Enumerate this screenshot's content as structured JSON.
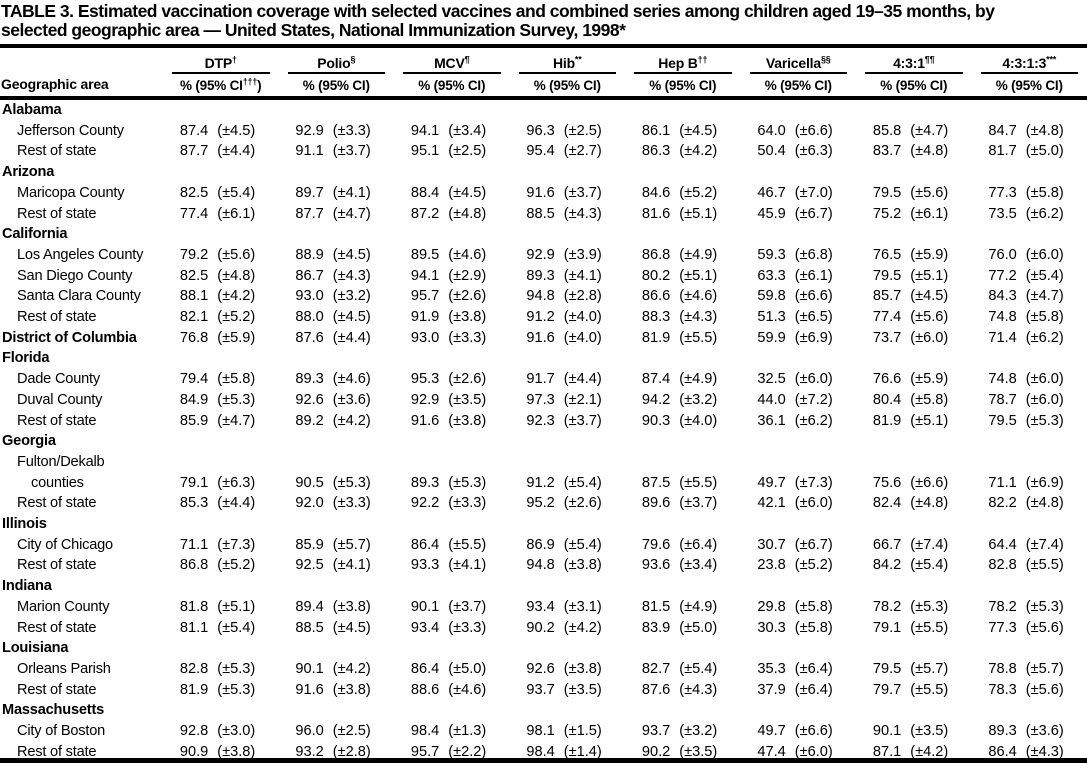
{
  "colors": {
    "text": "#000000",
    "background": "#ffffff",
    "rule": "#000000"
  },
  "title_line1": "TABLE 3. Estimated vaccination coverage with selected vaccines and combined series among children aged 19–35 months, by",
  "title_line2": "selected geographic area — United States, National Immunization Survey, 1998*",
  "table": {
    "geo_header": "Geographic area",
    "columns": [
      {
        "label": "DTP",
        "sup": "†",
        "sub": {
          "pre": "% (95% CI",
          "sup": "†††",
          "post": ")"
        }
      },
      {
        "label": "Polio",
        "sup": "§",
        "sub": {
          "pre": "% (95% CI",
          "sup": "",
          "post": ")"
        }
      },
      {
        "label": "MCV",
        "sup": "¶",
        "sub": {
          "pre": "% (95% CI",
          "sup": "",
          "post": ")"
        }
      },
      {
        "label": "Hib",
        "sup": "**",
        "sub": {
          "pre": "% (95% CI",
          "sup": "",
          "post": ")"
        }
      },
      {
        "label": "Hep B",
        "sup": "††",
        "sub": {
          "pre": "% (95% CI",
          "sup": "",
          "post": ")"
        }
      },
      {
        "label": "Varicella",
        "sup": "§§",
        "sub": {
          "pre": "% (95% CI",
          "sup": "",
          "post": ")"
        }
      },
      {
        "label": "4:3:1",
        "sup": "¶¶",
        "sub": {
          "pre": "% (95% CI",
          "sup": "",
          "post": ")"
        }
      },
      {
        "label": "4:3:1:3",
        "sup": "***",
        "sub": {
          "pre": "% (95% CI",
          "sup": "",
          "post": ")"
        }
      }
    ],
    "rows": [
      {
        "label": "Alabama",
        "bold": true,
        "indent": 0,
        "values": null
      },
      {
        "label": "Jefferson County",
        "indent": 1,
        "values": [
          [
            "87.4",
            "(±4.5)"
          ],
          [
            "92.9",
            "(±3.3)"
          ],
          [
            "94.1",
            "(±3.4)"
          ],
          [
            "96.3",
            "(±2.5)"
          ],
          [
            "86.1",
            "(±4.5)"
          ],
          [
            "64.0",
            "(±6.6)"
          ],
          [
            "85.8",
            "(±4.7)"
          ],
          [
            "84.7",
            "(±4.8)"
          ]
        ]
      },
      {
        "label": "Rest of state",
        "indent": 1,
        "values": [
          [
            "87.7",
            "(±4.4)"
          ],
          [
            "91.1",
            "(±3.7)"
          ],
          [
            "95.1",
            "(±2.5)"
          ],
          [
            "95.4",
            "(±2.7)"
          ],
          [
            "86.3",
            "(±4.2)"
          ],
          [
            "50.4",
            "(±6.3)"
          ],
          [
            "83.7",
            "(±4.8)"
          ],
          [
            "81.7",
            "(±5.0)"
          ]
        ]
      },
      {
        "label": "Arizona",
        "bold": true,
        "indent": 0,
        "values": null
      },
      {
        "label": "Maricopa County",
        "indent": 1,
        "values": [
          [
            "82.5",
            "(±5.4)"
          ],
          [
            "89.7",
            "(±4.1)"
          ],
          [
            "88.4",
            "(±4.5)"
          ],
          [
            "91.6",
            "(±3.7)"
          ],
          [
            "84.6",
            "(±5.2)"
          ],
          [
            "46.7",
            "(±7.0)"
          ],
          [
            "79.5",
            "(±5.6)"
          ],
          [
            "77.3",
            "(±5.8)"
          ]
        ]
      },
      {
        "label": "Rest of state",
        "indent": 1,
        "values": [
          [
            "77.4",
            "(±6.1)"
          ],
          [
            "87.7",
            "(±4.7)"
          ],
          [
            "87.2",
            "(±4.8)"
          ],
          [
            "88.5",
            "(±4.3)"
          ],
          [
            "81.6",
            "(±5.1)"
          ],
          [
            "45.9",
            "(±6.7)"
          ],
          [
            "75.2",
            "(±6.1)"
          ],
          [
            "73.5",
            "(±6.2)"
          ]
        ]
      },
      {
        "label": "California",
        "bold": true,
        "indent": 0,
        "values": null
      },
      {
        "label": "Los Angeles County",
        "indent": 1,
        "values": [
          [
            "79.2",
            "(±5.6)"
          ],
          [
            "88.9",
            "(±4.5)"
          ],
          [
            "89.5",
            "(±4.6)"
          ],
          [
            "92.9",
            "(±3.9)"
          ],
          [
            "86.8",
            "(±4.9)"
          ],
          [
            "59.3",
            "(±6.8)"
          ],
          [
            "76.5",
            "(±5.9)"
          ],
          [
            "76.0",
            "(±6.0)"
          ]
        ]
      },
      {
        "label": "San Diego County",
        "indent": 1,
        "values": [
          [
            "82.5",
            "(±4.8)"
          ],
          [
            "86.7",
            "(±4.3)"
          ],
          [
            "94.1",
            "(±2.9)"
          ],
          [
            "89.3",
            "(±4.1)"
          ],
          [
            "80.2",
            "(±5.1)"
          ],
          [
            "63.3",
            "(±6.1)"
          ],
          [
            "79.5",
            "(±5.1)"
          ],
          [
            "77.2",
            "(±5.4)"
          ]
        ]
      },
      {
        "label": "Santa Clara County",
        "indent": 1,
        "values": [
          [
            "88.1",
            "(±4.2)"
          ],
          [
            "93.0",
            "(±3.2)"
          ],
          [
            "95.7",
            "(±2.6)"
          ],
          [
            "94.8",
            "(±2.8)"
          ],
          [
            "86.6",
            "(±4.6)"
          ],
          [
            "59.8",
            "(±6.6)"
          ],
          [
            "85.7",
            "(±4.5)"
          ],
          [
            "84.3",
            "(±4.7)"
          ]
        ]
      },
      {
        "label": "Rest of state",
        "indent": 1,
        "values": [
          [
            "82.1",
            "(±5.2)"
          ],
          [
            "88.0",
            "(±4.5)"
          ],
          [
            "91.9",
            "(±3.8)"
          ],
          [
            "91.2",
            "(±4.0)"
          ],
          [
            "88.3",
            "(±4.3)"
          ],
          [
            "51.3",
            "(±6.5)"
          ],
          [
            "77.4",
            "(±5.6)"
          ],
          [
            "74.8",
            "(±5.8)"
          ]
        ]
      },
      {
        "label": "District of Columbia",
        "bold": true,
        "indent": 0,
        "values": [
          [
            "76.8",
            "(±5.9)"
          ],
          [
            "87.6",
            "(±4.4)"
          ],
          [
            "93.0",
            "(±3.3)"
          ],
          [
            "91.6",
            "(±4.0)"
          ],
          [
            "81.9",
            "(±5.5)"
          ],
          [
            "59.9",
            "(±6.9)"
          ],
          [
            "73.7",
            "(±6.0)"
          ],
          [
            "71.4",
            "(±6.2)"
          ]
        ]
      },
      {
        "label": "Florida",
        "bold": true,
        "indent": 0,
        "values": null
      },
      {
        "label": "Dade County",
        "indent": 1,
        "values": [
          [
            "79.4",
            "(±5.8)"
          ],
          [
            "89.3",
            "(±4.6)"
          ],
          [
            "95.3",
            "(±2.6)"
          ],
          [
            "91.7",
            "(±4.4)"
          ],
          [
            "87.4",
            "(±4.9)"
          ],
          [
            "32.5",
            "(±6.0)"
          ],
          [
            "76.6",
            "(±5.9)"
          ],
          [
            "74.8",
            "(±6.0)"
          ]
        ]
      },
      {
        "label": "Duval County",
        "indent": 1,
        "values": [
          [
            "84.9",
            "(±5.3)"
          ],
          [
            "92.6",
            "(±3.6)"
          ],
          [
            "92.9",
            "(±3.5)"
          ],
          [
            "97.3",
            "(±2.1)"
          ],
          [
            "94.2",
            "(±3.2)"
          ],
          [
            "44.0",
            "(±7.2)"
          ],
          [
            "80.4",
            "(±5.8)"
          ],
          [
            "78.7",
            "(±6.0)"
          ]
        ]
      },
      {
        "label": "Rest of state",
        "indent": 1,
        "values": [
          [
            "85.9",
            "(±4.7)"
          ],
          [
            "89.2",
            "(±4.2)"
          ],
          [
            "91.6",
            "(±3.8)"
          ],
          [
            "92.3",
            "(±3.7)"
          ],
          [
            "90.3",
            "(±4.0)"
          ],
          [
            "36.1",
            "(±6.2)"
          ],
          [
            "81.9",
            "(±5.1)"
          ],
          [
            "79.5",
            "(±5.3)"
          ]
        ]
      },
      {
        "label": "Georgia",
        "bold": true,
        "indent": 0,
        "values": null
      },
      {
        "label": "Fulton/Dekalb",
        "indent": 1,
        "values": null
      },
      {
        "label": "counties",
        "indent": 2,
        "values": [
          [
            "79.1",
            "(±6.3)"
          ],
          [
            "90.5",
            "(±5.3)"
          ],
          [
            "89.3",
            "(±5.3)"
          ],
          [
            "91.2",
            "(±5.4)"
          ],
          [
            "87.5",
            "(±5.5)"
          ],
          [
            "49.7",
            "(±7.3)"
          ],
          [
            "75.6",
            "(±6.6)"
          ],
          [
            "71.1",
            "(±6.9)"
          ]
        ]
      },
      {
        "label": "Rest of state",
        "indent": 1,
        "values": [
          [
            "85.3",
            "(±4.4)"
          ],
          [
            "92.0",
            "(±3.3)"
          ],
          [
            "92.2",
            "(±3.3)"
          ],
          [
            "95.2",
            "(±2.6)"
          ],
          [
            "89.6",
            "(±3.7)"
          ],
          [
            "42.1",
            "(±6.0)"
          ],
          [
            "82.4",
            "(±4.8)"
          ],
          [
            "82.2",
            "(±4.8)"
          ]
        ]
      },
      {
        "label": "Illinois",
        "bold": true,
        "indent": 0,
        "values": null
      },
      {
        "label": "City of Chicago",
        "indent": 1,
        "values": [
          [
            "71.1",
            "(±7.3)"
          ],
          [
            "85.9",
            "(±5.7)"
          ],
          [
            "86.4",
            "(±5.5)"
          ],
          [
            "86.9",
            "(±5.4)"
          ],
          [
            "79.6",
            "(±6.4)"
          ],
          [
            "30.7",
            "(±6.7)"
          ],
          [
            "66.7",
            "(±7.4)"
          ],
          [
            "64.4",
            "(±7.4)"
          ]
        ]
      },
      {
        "label": "Rest of state",
        "indent": 1,
        "values": [
          [
            "86.8",
            "(±5.2)"
          ],
          [
            "92.5",
            "(±4.1)"
          ],
          [
            "93.3",
            "(±4.1)"
          ],
          [
            "94.8",
            "(±3.8)"
          ],
          [
            "93.6",
            "(±3.4)"
          ],
          [
            "23.8",
            "(±5.2)"
          ],
          [
            "84.2",
            "(±5.4)"
          ],
          [
            "82.8",
            "(±5.5)"
          ]
        ]
      },
      {
        "label": "Indiana",
        "bold": true,
        "indent": 0,
        "values": null
      },
      {
        "label": "Marion County",
        "indent": 1,
        "values": [
          [
            "81.8",
            "(±5.1)"
          ],
          [
            "89.4",
            "(±3.8)"
          ],
          [
            "90.1",
            "(±3.7)"
          ],
          [
            "93.4",
            "(±3.1)"
          ],
          [
            "81.5",
            "(±4.9)"
          ],
          [
            "29.8",
            "(±5.8)"
          ],
          [
            "78.2",
            "(±5.3)"
          ],
          [
            "78.2",
            "(±5.3)"
          ]
        ]
      },
      {
        "label": "Rest of state",
        "indent": 1,
        "values": [
          [
            "81.1",
            "(±5.4)"
          ],
          [
            "88.5",
            "(±4.5)"
          ],
          [
            "93.4",
            "(±3.3)"
          ],
          [
            "90.2",
            "(±4.2)"
          ],
          [
            "83.9",
            "(±5.0)"
          ],
          [
            "30.3",
            "(±5.8)"
          ],
          [
            "79.1",
            "(±5.5)"
          ],
          [
            "77.3",
            "(±5.6)"
          ]
        ]
      },
      {
        "label": "Louisiana",
        "bold": true,
        "indent": 0,
        "values": null
      },
      {
        "label": "Orleans Parish",
        "indent": 1,
        "values": [
          [
            "82.8",
            "(±5.3)"
          ],
          [
            "90.1",
            "(±4.2)"
          ],
          [
            "86.4",
            "(±5.0)"
          ],
          [
            "92.6",
            "(±3.8)"
          ],
          [
            "82.7",
            "(±5.4)"
          ],
          [
            "35.3",
            "(±6.4)"
          ],
          [
            "79.5",
            "(±5.7)"
          ],
          [
            "78.8",
            "(±5.7)"
          ]
        ]
      },
      {
        "label": "Rest of state",
        "indent": 1,
        "values": [
          [
            "81.9",
            "(±5.3)"
          ],
          [
            "91.6",
            "(±3.8)"
          ],
          [
            "88.6",
            "(±4.6)"
          ],
          [
            "93.7",
            "(±3.5)"
          ],
          [
            "87.6",
            "(±4.3)"
          ],
          [
            "37.9",
            "(±6.4)"
          ],
          [
            "79.7",
            "(±5.5)"
          ],
          [
            "78.3",
            "(±5.6)"
          ]
        ]
      },
      {
        "label": "Massachusetts",
        "bold": true,
        "indent": 0,
        "values": null
      },
      {
        "label": "City of Boston",
        "indent": 1,
        "values": [
          [
            "92.8",
            "(±3.0)"
          ],
          [
            "96.0",
            "(±2.5)"
          ],
          [
            "98.4",
            "(±1.3)"
          ],
          [
            "98.1",
            "(±1.5)"
          ],
          [
            "93.7",
            "(±3.2)"
          ],
          [
            "49.7",
            "(±6.6)"
          ],
          [
            "90.1",
            "(±3.5)"
          ],
          [
            "89.3",
            "(±3.6)"
          ]
        ]
      },
      {
        "label": "Rest of state",
        "indent": 1,
        "values": [
          [
            "90.9",
            "(±3.8)"
          ],
          [
            "93.2",
            "(±2.8)"
          ],
          [
            "95.7",
            "(±2.2)"
          ],
          [
            "98.4",
            "(±1.4)"
          ],
          [
            "90.2",
            "(±3.5)"
          ],
          [
            "47.4",
            "(±6.0)"
          ],
          [
            "87.1",
            "(±4.2)"
          ],
          [
            "86.4",
            "(±4.3)"
          ]
        ]
      }
    ]
  }
}
